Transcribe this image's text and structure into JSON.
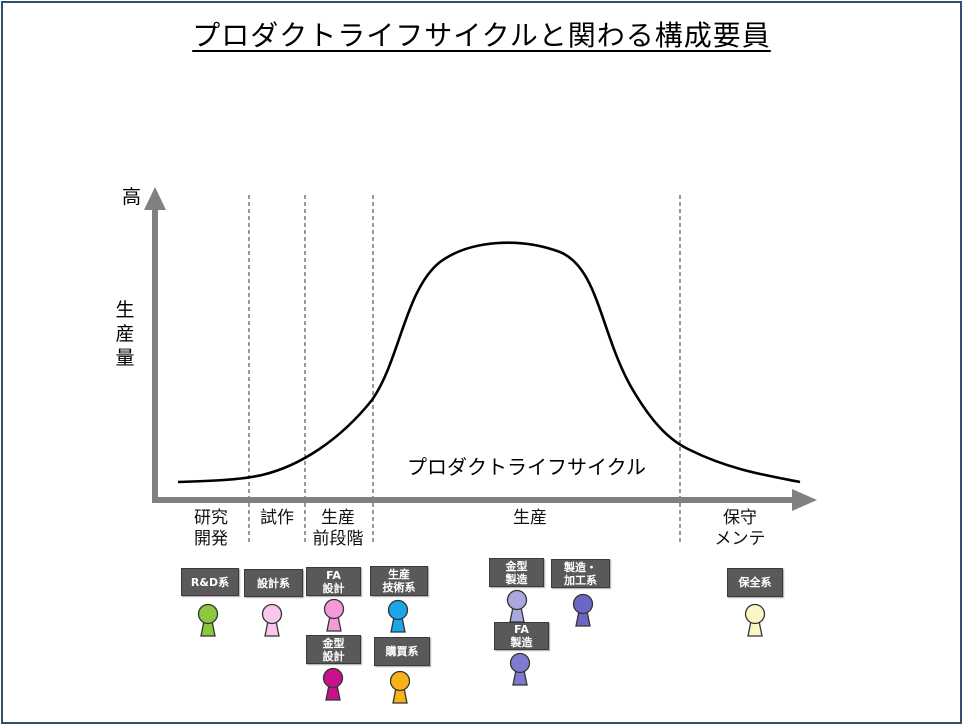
{
  "title": "プロダクトライフサイクルと関わる構成要員",
  "y_axis": {
    "top_label": "高",
    "label": "生\n産\n量"
  },
  "curve_label": "プロダクトライフサイクル",
  "phases": [
    {
      "id": "rd",
      "label": "研究\n開発"
    },
    {
      "id": "proto",
      "label": "試作"
    },
    {
      "id": "preprod",
      "label": "生産\n前段階"
    },
    {
      "id": "prod",
      "label": "生産"
    },
    {
      "id": "maint",
      "label": "保守\nメンテ"
    }
  ],
  "roles": [
    {
      "id": "rd",
      "label": "R&D系",
      "color": "#8dc63f"
    },
    {
      "id": "design",
      "label": "設計系",
      "color": "#f9c6f0"
    },
    {
      "id": "fa-design",
      "label": "FA\n設計",
      "color": "#f29bd8"
    },
    {
      "id": "mold-design",
      "label": "金型\n設計",
      "color": "#c8128c"
    },
    {
      "id": "prod-eng",
      "label": "生産\n技術系",
      "color": "#1aa6e8"
    },
    {
      "id": "purchase",
      "label": "購買系",
      "color": "#f7b21a"
    },
    {
      "id": "mold-mfg",
      "label": "金型\n製造",
      "color": "#a8a8de"
    },
    {
      "id": "fa-mfg",
      "label": "FA\n製造",
      "color": "#7e7ad0"
    },
    {
      "id": "mfg-proc",
      "label": "製造・\n加工系",
      "color": "#6c67c4"
    },
    {
      "id": "maint",
      "label": "保全系",
      "color": "#fbf6c4"
    }
  ]
}
